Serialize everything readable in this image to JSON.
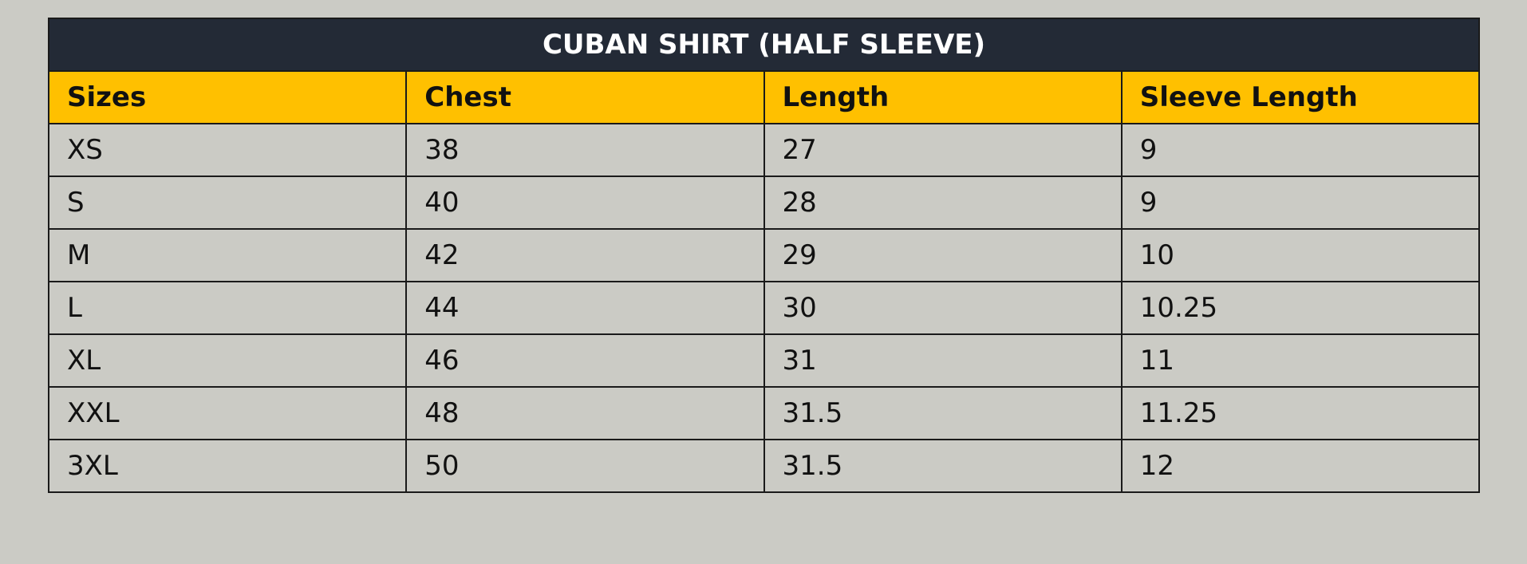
{
  "table": {
    "title": "CUBAN SHIRT (HALF SLEEVE)",
    "columns": [
      "Sizes",
      "Chest",
      "Length",
      "Sleeve Length"
    ],
    "rows": [
      [
        "XS",
        "38",
        "27",
        "9"
      ],
      [
        "S",
        "40",
        "28",
        "9"
      ],
      [
        "M",
        "42",
        "29",
        "10"
      ],
      [
        "L",
        "44",
        "30",
        "10.25"
      ],
      [
        "XL",
        "46",
        "31",
        "11"
      ],
      [
        "XXL",
        "48",
        "31.5",
        "11.25"
      ],
      [
        "3XL",
        "50",
        "31.5",
        "12"
      ]
    ]
  }
}
